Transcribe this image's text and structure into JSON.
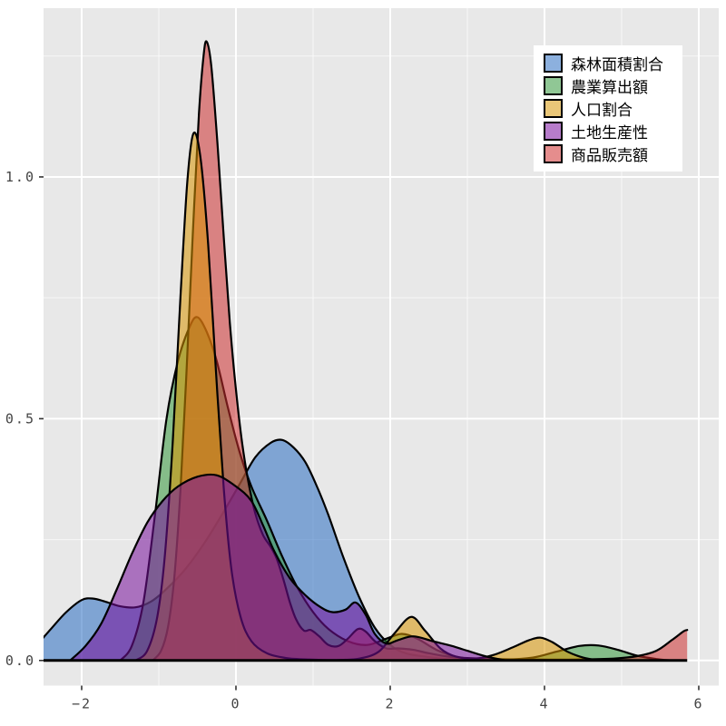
{
  "figure": {
    "background": "#ffffff",
    "panel_background": "#e8e8e8",
    "grid_major_color": "#ffffff",
    "grid_minor_color": "#ffffff",
    "curve_outline_color": "#000000",
    "baseline_color": "#000000",
    "tick_color": "#444444",
    "fill_alpha": 0.55
  },
  "legend": {
    "items": [
      {
        "label": "森林面積割合",
        "swatch": "#8CB0DE"
      },
      {
        "label": "農業算出額",
        "swatch": "#90C795"
      },
      {
        "label": "人口割合",
        "swatch": "#EAC778"
      },
      {
        "label": "土地生産性",
        "swatch": "#B77CCB"
      },
      {
        "label": "商品販売額",
        "swatch": "#E58D8D"
      }
    ]
  },
  "chart_data": {
    "type": "area",
    "title": "",
    "xlabel": "",
    "ylabel": "",
    "xlim": [
      -2.494,
      6.259
    ],
    "ylim": [
      -0.052,
      1.349
    ],
    "x_ticks": [
      {
        "v": -2,
        "label": "−2"
      },
      {
        "v": 0,
        "label": "0"
      },
      {
        "v": 2,
        "label": "2"
      },
      {
        "v": 4,
        "label": "4"
      },
      {
        "v": 6,
        "label": "6"
      }
    ],
    "x_minor": [
      -1,
      1,
      3,
      5
    ],
    "y_ticks": [
      {
        "v": 0.0,
        "label": "0.0"
      },
      {
        "v": 0.5,
        "label": "0.5"
      },
      {
        "v": 1.0,
        "label": "1.0"
      }
    ],
    "y_minor": [
      0.25,
      0.75,
      1.25
    ],
    "grid": true,
    "legend_position": "top-right",
    "series": [
      {
        "id": "forest-area-ratio",
        "label": "森林面積割合",
        "color": "#286CC1",
        "points": [
          [
            -2.6,
            0.028
          ],
          [
            -2.4,
            0.065
          ],
          [
            -2.2,
            0.1
          ],
          [
            -2.0,
            0.125
          ],
          [
            -1.85,
            0.128
          ],
          [
            -1.7,
            0.122
          ],
          [
            -1.5,
            0.112
          ],
          [
            -1.3,
            0.11
          ],
          [
            -1.1,
            0.122
          ],
          [
            -0.9,
            0.148
          ],
          [
            -0.65,
            0.19
          ],
          [
            -0.4,
            0.245
          ],
          [
            -0.15,
            0.31
          ],
          [
            0.05,
            0.365
          ],
          [
            0.25,
            0.42
          ],
          [
            0.45,
            0.45
          ],
          [
            0.6,
            0.456
          ],
          [
            0.75,
            0.44
          ],
          [
            0.9,
            0.41
          ],
          [
            1.05,
            0.36
          ],
          [
            1.2,
            0.3
          ],
          [
            1.4,
            0.21
          ],
          [
            1.6,
            0.13
          ],
          [
            1.8,
            0.068
          ],
          [
            2.0,
            0.032
          ],
          [
            2.2,
            0.015
          ],
          [
            2.5,
            0.007
          ],
          [
            2.8,
            0.002
          ],
          [
            3.1,
            0.0
          ]
        ]
      },
      {
        "id": "agricultural-output",
        "label": "農業算出額",
        "color": "#33973A",
        "points": [
          [
            -1.5,
            0.0
          ],
          [
            -1.35,
            0.03
          ],
          [
            -1.2,
            0.12
          ],
          [
            -1.05,
            0.3
          ],
          [
            -0.9,
            0.5
          ],
          [
            -0.75,
            0.62
          ],
          [
            -0.6,
            0.69
          ],
          [
            -0.5,
            0.71
          ],
          [
            -0.38,
            0.68
          ],
          [
            -0.25,
            0.62
          ],
          [
            -0.1,
            0.52
          ],
          [
            0.05,
            0.43
          ],
          [
            0.2,
            0.36
          ],
          [
            0.4,
            0.29
          ],
          [
            0.6,
            0.215
          ],
          [
            0.8,
            0.15
          ],
          [
            1.0,
            0.1
          ],
          [
            1.2,
            0.065
          ],
          [
            1.45,
            0.04
          ],
          [
            1.7,
            0.032
          ],
          [
            1.95,
            0.045
          ],
          [
            2.15,
            0.055
          ],
          [
            2.35,
            0.045
          ],
          [
            2.6,
            0.022
          ],
          [
            2.85,
            0.008
          ],
          [
            3.1,
            0.003
          ],
          [
            3.5,
            0.002
          ],
          [
            3.85,
            0.006
          ],
          [
            4.15,
            0.018
          ],
          [
            4.45,
            0.03
          ],
          [
            4.7,
            0.031
          ],
          [
            4.95,
            0.022
          ],
          [
            5.2,
            0.01
          ],
          [
            5.45,
            0.003
          ],
          [
            5.65,
            0.0
          ]
        ]
      },
      {
        "id": "merchandise-sales",
        "label": "商品販売額",
        "color": "#CC2E2E",
        "points": [
          [
            -1.08,
            0.0
          ],
          [
            -0.97,
            0.02
          ],
          [
            -0.88,
            0.07
          ],
          [
            -0.8,
            0.17
          ],
          [
            -0.72,
            0.35
          ],
          [
            -0.64,
            0.6
          ],
          [
            -0.56,
            0.88
          ],
          [
            -0.48,
            1.13
          ],
          [
            -0.42,
            1.25
          ],
          [
            -0.38,
            1.28
          ],
          [
            -0.32,
            1.23
          ],
          [
            -0.24,
            1.07
          ],
          [
            -0.16,
            0.88
          ],
          [
            -0.08,
            0.7
          ],
          [
            0.0,
            0.56
          ],
          [
            0.08,
            0.45
          ],
          [
            0.16,
            0.37
          ],
          [
            0.25,
            0.305
          ],
          [
            0.35,
            0.26
          ],
          [
            0.45,
            0.235
          ],
          [
            0.53,
            0.21
          ],
          [
            0.62,
            0.165
          ],
          [
            0.7,
            0.12
          ],
          [
            0.78,
            0.085
          ],
          [
            0.88,
            0.062
          ],
          [
            0.97,
            0.063
          ],
          [
            1.08,
            0.05
          ],
          [
            1.2,
            0.032
          ],
          [
            1.33,
            0.03
          ],
          [
            1.45,
            0.045
          ],
          [
            1.58,
            0.065
          ],
          [
            1.68,
            0.06
          ],
          [
            1.8,
            0.04
          ],
          [
            1.95,
            0.025
          ],
          [
            2.1,
            0.025
          ],
          [
            2.3,
            0.022
          ],
          [
            2.5,
            0.015
          ],
          [
            2.75,
            0.008
          ],
          [
            3.0,
            0.005
          ],
          [
            3.4,
            0.003
          ],
          [
            3.9,
            0.002
          ],
          [
            4.4,
            0.002
          ],
          [
            4.9,
            0.004
          ],
          [
            5.2,
            0.009
          ],
          [
            5.45,
            0.02
          ],
          [
            5.65,
            0.042
          ],
          [
            5.8,
            0.06
          ],
          [
            5.85,
            0.063
          ]
        ]
      },
      {
        "id": "population-ratio",
        "label": "人口割合",
        "color": "#D79400",
        "points": [
          [
            -1.3,
            0.0
          ],
          [
            -1.15,
            0.02
          ],
          [
            -1.02,
            0.09
          ],
          [
            -0.92,
            0.22
          ],
          [
            -0.82,
            0.45
          ],
          [
            -0.72,
            0.75
          ],
          [
            -0.63,
            0.99
          ],
          [
            -0.55,
            1.09
          ],
          [
            -0.46,
            1.04
          ],
          [
            -0.36,
            0.86
          ],
          [
            -0.26,
            0.6
          ],
          [
            -0.16,
            0.36
          ],
          [
            -0.06,
            0.19
          ],
          [
            0.06,
            0.09
          ],
          [
            0.2,
            0.04
          ],
          [
            0.4,
            0.015
          ],
          [
            0.65,
            0.005
          ],
          [
            0.95,
            0.002
          ],
          [
            1.3,
            0.001
          ],
          [
            1.6,
            0.004
          ],
          [
            1.85,
            0.018
          ],
          [
            2.05,
            0.055
          ],
          [
            2.27,
            0.09
          ],
          [
            2.45,
            0.062
          ],
          [
            2.65,
            0.025
          ],
          [
            2.85,
            0.008
          ],
          [
            3.1,
            0.004
          ],
          [
            3.35,
            0.012
          ],
          [
            3.6,
            0.028
          ],
          [
            3.8,
            0.042
          ],
          [
            3.95,
            0.047
          ],
          [
            4.1,
            0.038
          ],
          [
            4.3,
            0.018
          ],
          [
            4.5,
            0.006
          ],
          [
            4.7,
            0.0
          ]
        ]
      },
      {
        "id": "land-productivity",
        "label": "土地生産性",
        "color": "#770F9B",
        "points": [
          [
            -2.15,
            0.0
          ],
          [
            -1.95,
            0.03
          ],
          [
            -1.75,
            0.075
          ],
          [
            -1.55,
            0.145
          ],
          [
            -1.35,
            0.22
          ],
          [
            -1.15,
            0.285
          ],
          [
            -0.95,
            0.33
          ],
          [
            -0.75,
            0.36
          ],
          [
            -0.5,
            0.38
          ],
          [
            -0.25,
            0.383
          ],
          [
            0.0,
            0.36
          ],
          [
            0.2,
            0.33
          ],
          [
            0.35,
            0.28
          ],
          [
            0.5,
            0.225
          ],
          [
            0.7,
            0.17
          ],
          [
            0.9,
            0.135
          ],
          [
            1.1,
            0.11
          ],
          [
            1.25,
            0.1
          ],
          [
            1.42,
            0.105
          ],
          [
            1.55,
            0.12
          ],
          [
            1.68,
            0.095
          ],
          [
            1.8,
            0.055
          ],
          [
            1.95,
            0.035
          ],
          [
            2.1,
            0.042
          ],
          [
            2.3,
            0.05
          ],
          [
            2.55,
            0.04
          ],
          [
            2.8,
            0.03
          ],
          [
            3.0,
            0.02
          ],
          [
            3.25,
            0.008
          ],
          [
            3.5,
            0.0
          ]
        ]
      }
    ]
  }
}
